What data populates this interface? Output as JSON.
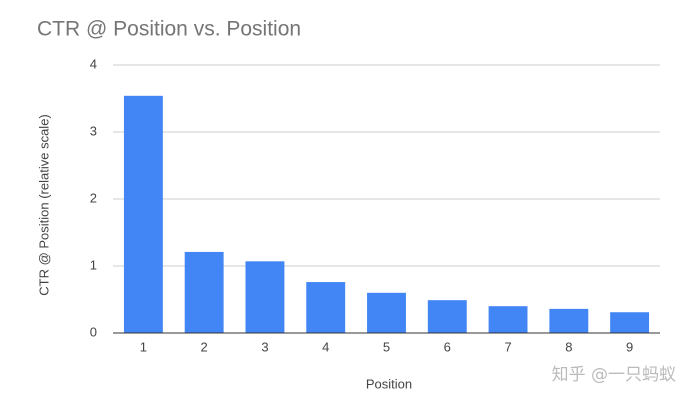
{
  "chart_data": {
    "type": "bar",
    "title": "CTR @ Position vs. Position",
    "x_label": "Position",
    "y_label": "CTR @ Position (relative scale)",
    "categories": [
      "1",
      "2",
      "3",
      "4",
      "5",
      "6",
      "7",
      "8",
      "9"
    ],
    "values": [
      3.54,
      1.21,
      1.07,
      0.76,
      0.6,
      0.49,
      0.4,
      0.36,
      0.31
    ],
    "color": "#4285f4",
    "ylim": [
      0,
      4
    ],
    "yticks": [
      0,
      1,
      2,
      3,
      4
    ],
    "grid": true,
    "watermark": "知乎 @一只蚂蚁"
  }
}
